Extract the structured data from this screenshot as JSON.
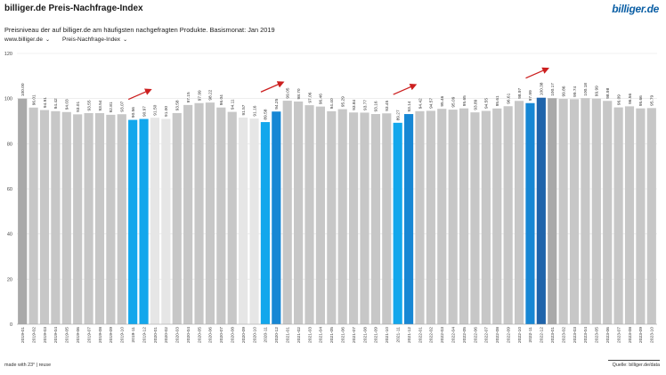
{
  "header": {
    "title": "billiger.de Preis-Nachfrage-Index",
    "subtitle": "Preisniveau der auf billiger.de am häufigsten nachgefragten Produkte. Basismonat: Jan 2019",
    "logo": "billiger.de"
  },
  "controls": {
    "source_select": "www.billiger.de",
    "metric_select": "Preis-Nachfrage-Index"
  },
  "footer": {
    "made_with": "made with 23° | reuse",
    "source": "Quelle: billiger.de/data"
  },
  "colors": {
    "bar_grey": "#c7c7c7",
    "bar_light": "#e6e6e6",
    "bar_blue": "#13a7ec",
    "bar_dark_blue": "#1f64ab",
    "arrow": "#cc1f1f"
  },
  "chart_data": {
    "type": "bar",
    "title": "billiger.de Preis-Nachfrage-Index",
    "xlabel": "",
    "ylabel": "",
    "ylim": [
      0,
      120
    ],
    "yticks": [
      0,
      20,
      40,
      60,
      80,
      100,
      120
    ],
    "grid": true,
    "categories": [
      "2019-01",
      "2019-02",
      "2019-03",
      "2019-04",
      "2019-05",
      "2019-06",
      "2019-07",
      "2019-08",
      "2019-09",
      "2019-10",
      "2019-11",
      "2019-12",
      "2020-01",
      "2020-02",
      "2020-03",
      "2020-04",
      "2020-05",
      "2020-06",
      "2020-07",
      "2020-08",
      "2020-09",
      "2020-10",
      "2020-11",
      "2020-12",
      "2021-01",
      "2021-02",
      "2021-03",
      "2021-04",
      "2021-05",
      "2021-06",
      "2021-07",
      "2021-08",
      "2021-09",
      "2021-10",
      "2021-11",
      "2021-12",
      "2022-01",
      "2022-02",
      "2022-03",
      "2022-04",
      "2022-05",
      "2022-06",
      "2022-07",
      "2022-08",
      "2022-09",
      "2022-10",
      "2022-11",
      "2022-12",
      "2023-01",
      "2023-02",
      "2023-03",
      "2023-04",
      "2023-05",
      "2023-06",
      "2023-07",
      "2023-08",
      "2023-09",
      "2023-10"
    ],
    "values": [
      100.0,
      96.01,
      94.91,
      94.42,
      94.03,
      93.01,
      93.55,
      93.54,
      92.81,
      93.07,
      90.56,
      90.97,
      91.5,
      91.0,
      93.58,
      97.15,
      97.99,
      98.22,
      96.04,
      94.11,
      91.57,
      91.16,
      89.58,
      94.25,
      99.05,
      98.7,
      97.06,
      96.46,
      94.4,
      95.29,
      93.84,
      93.77,
      93.16,
      93.45,
      89.27,
      93.14,
      94.42,
      94.57,
      95.46,
      95.09,
      95.65,
      93.89,
      94.55,
      95.61,
      96.61,
      98.97,
      97.99,
      100.38,
      100.17,
      99.86,
      99.74,
      100.18,
      99.99,
      98.98,
      96.09,
      96.56,
      95.66,
      95.79
    ],
    "value_labels": [
      "100.00",
      "96.01",
      "94.91",
      "94.42",
      "94.03",
      "93.01",
      "93.55",
      "93.54",
      "92.81",
      "93.07",
      "90.56",
      "90.97",
      "91.50",
      "91.00",
      "93.58",
      "97.15",
      "97.99",
      "98.22",
      "96.04",
      "94.11",
      "91.57",
      "91.16",
      "89.58",
      "94.25",
      "99.05",
      "98.70",
      "97.06",
      "96.46",
      "94.40",
      "95.29",
      "93.84",
      "93.77",
      "93.16",
      "93.45",
      "89.27",
      "93.14",
      "94.42",
      "94.57",
      "95.46",
      "95.09",
      "95.65",
      "93.89",
      "94.55",
      "95.61",
      "96.61",
      "98.97",
      "97.99",
      "100.38",
      "100.17",
      "99.86",
      "99.74",
      "100.18",
      "99.99",
      "98.98",
      "96.09",
      "96.56",
      "95.66",
      "95.79"
    ],
    "bar_color_keys": [
      "darkgrey",
      "grey",
      "grey",
      "grey",
      "grey",
      "grey",
      "grey",
      "grey",
      "grey",
      "grey",
      "blue",
      "blue",
      "light",
      "light",
      "grey",
      "grey",
      "grey",
      "grey",
      "grey",
      "grey",
      "light",
      "light",
      "blue",
      "darkblue2",
      "grey",
      "grey",
      "grey",
      "grey",
      "grey",
      "grey",
      "grey",
      "grey",
      "grey",
      "grey",
      "blue",
      "darkblue2",
      "grey",
      "grey",
      "grey",
      "grey",
      "grey",
      "grey",
      "grey",
      "grey",
      "grey",
      "grey",
      "darkblue2",
      "darkblue",
      "darkgrey",
      "grey",
      "grey",
      "grey",
      "grey",
      "grey",
      "grey",
      "grey",
      "grey",
      "grey"
    ],
    "arrows": [
      {
        "from_index": 10,
        "to_index": 11
      },
      {
        "from_index": 22,
        "to_index": 23
      },
      {
        "from_index": 34,
        "to_index": 35
      },
      {
        "from_index": 46,
        "to_index": 47
      }
    ]
  }
}
